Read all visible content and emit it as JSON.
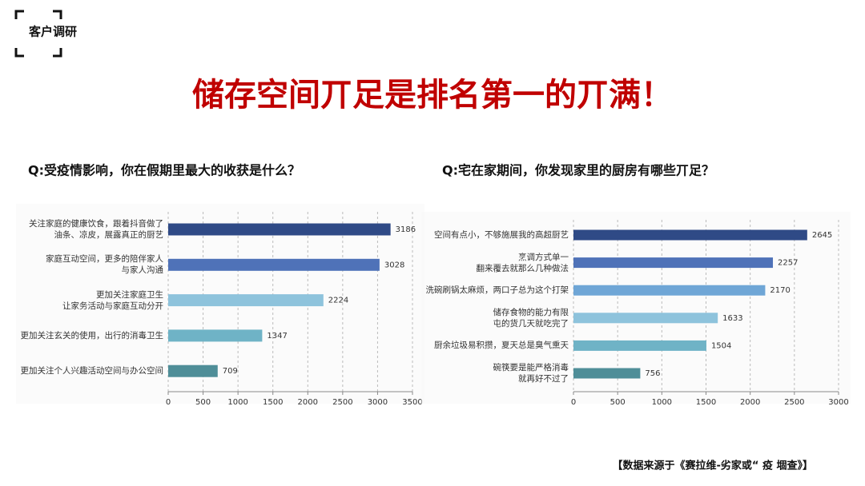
{
  "header": {
    "tag": "客户调研",
    "title": "储存空间丌足是排名第一的丌满！",
    "source": "【数据来源于《赛拉维-劣家或“ 疫 堌查》】"
  },
  "chart_data": [
    {
      "type": "bar",
      "orientation": "horizontal",
      "title": "Q:受疫情影响，你在假期里最大的收获是什么？",
      "categories": [
        "关注家庭的健康饮食，跟着抖音做了\n油条、凉皮，展露真正的厨艺",
        "家庭互动空间，更多的陪伴家人\n与家人沟通",
        "更加关注家庭卫生\n让家务活动与家庭互动分开",
        "更加关注玄关的使用，出行的消毒卫生",
        "更加关注个人兴趣活动空间与办公空间"
      ],
      "values": [
        3186,
        3028,
        2224,
        1347,
        709
      ],
      "colors": [
        "#2f4a86",
        "#4f72b8",
        "#8ec3dc",
        "#6fb3c6",
        "#4f8e98"
      ],
      "xlim": [
        0,
        3500
      ],
      "xticks": [
        0,
        500,
        1000,
        1500,
        2000,
        2500,
        3000,
        3500
      ],
      "grid": true
    },
    {
      "type": "bar",
      "orientation": "horizontal",
      "title": "Q:宅在家期间，你发现家里的厨房有哪些丌足？",
      "categories": [
        "空间有点小，不够施展我的高超厨艺",
        "烹调方式单一\n翻来覆去就那么几种做法",
        "洗碗刷锅太麻烦，两口子总为这个打架",
        "储存食物的能力有限\n屯的货几天就吃完了",
        "厨余垃圾易积攒，夏天总是臭气熏天",
        "碗筷要是能严格消毒\n就再好不过了"
      ],
      "values": [
        2645,
        2257,
        2170,
        1633,
        1504,
        756
      ],
      "colors": [
        "#2f4a86",
        "#4f72b8",
        "#6fa6d6",
        "#8ec3dc",
        "#6fb3c6",
        "#4f8e98"
      ],
      "xlim": [
        0,
        3000
      ],
      "xticks": [
        0,
        500,
        1000,
        1500,
        2000,
        2500,
        3000
      ],
      "grid": true
    }
  ]
}
